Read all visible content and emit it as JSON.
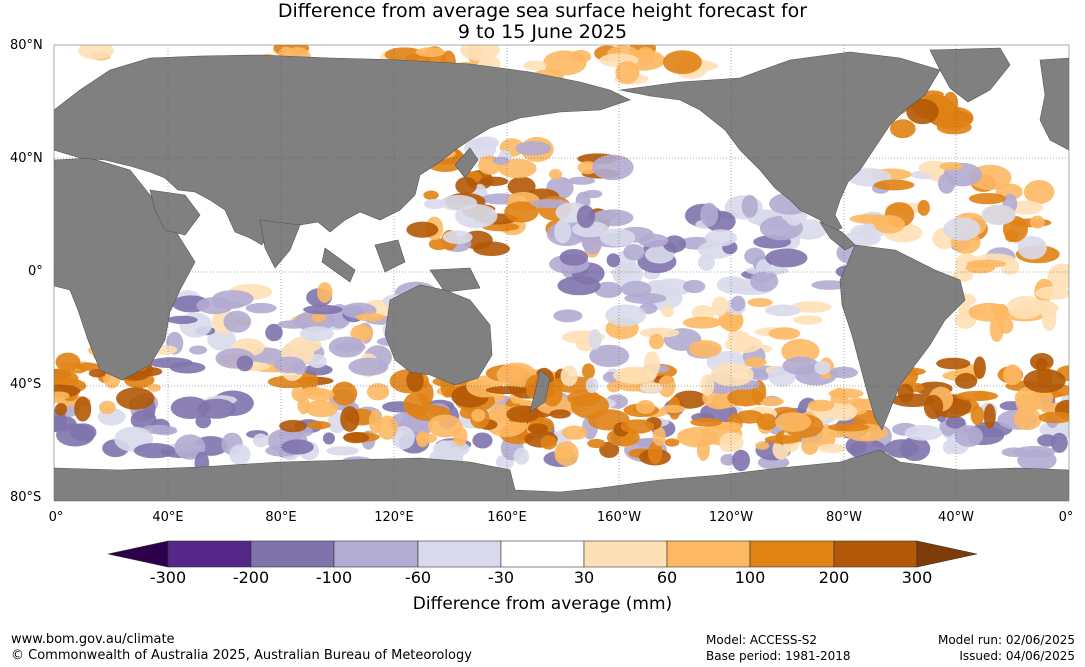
{
  "title_line1": "Difference from average sea surface height forecast for",
  "title_line2": "9 to 15 June 2025",
  "latitude_labels": [
    "80°N",
    "40°N",
    "0°",
    "40°S",
    "80°S"
  ],
  "longitude_labels": [
    "0°",
    "40°E",
    "80°E",
    "120°E",
    "160°E",
    "160°W",
    "120°W",
    "80°W",
    "40°W",
    "0°"
  ],
  "colorbar": {
    "title": "Difference from average (mm)",
    "tick_labels": [
      "-300",
      "-200",
      "-100",
      "-60",
      "-30",
      "30",
      "60",
      "100",
      "200",
      "300"
    ],
    "colors": [
      "#2d004b",
      "#542788",
      "#8073ac",
      "#b2abd2",
      "#d8daeb",
      "#ffffff",
      "#fee0b6",
      "#fdb863",
      "#e08214",
      "#b35806",
      "#7f3b08"
    ]
  },
  "map_colors": {
    "land": "#808080",
    "ocean_default": "#ffffff"
  },
  "footer": {
    "url": "www.bom.gov.au/climate",
    "copyright": "© Commonwealth of Australia 2025, Australian Bureau of Meteorology",
    "model": "Model: ACCESS-S2",
    "base_period": "Base period: 1981-2018",
    "model_run": "Model run: 02/06/2025",
    "issued": "Issued: 04/06/2025"
  }
}
